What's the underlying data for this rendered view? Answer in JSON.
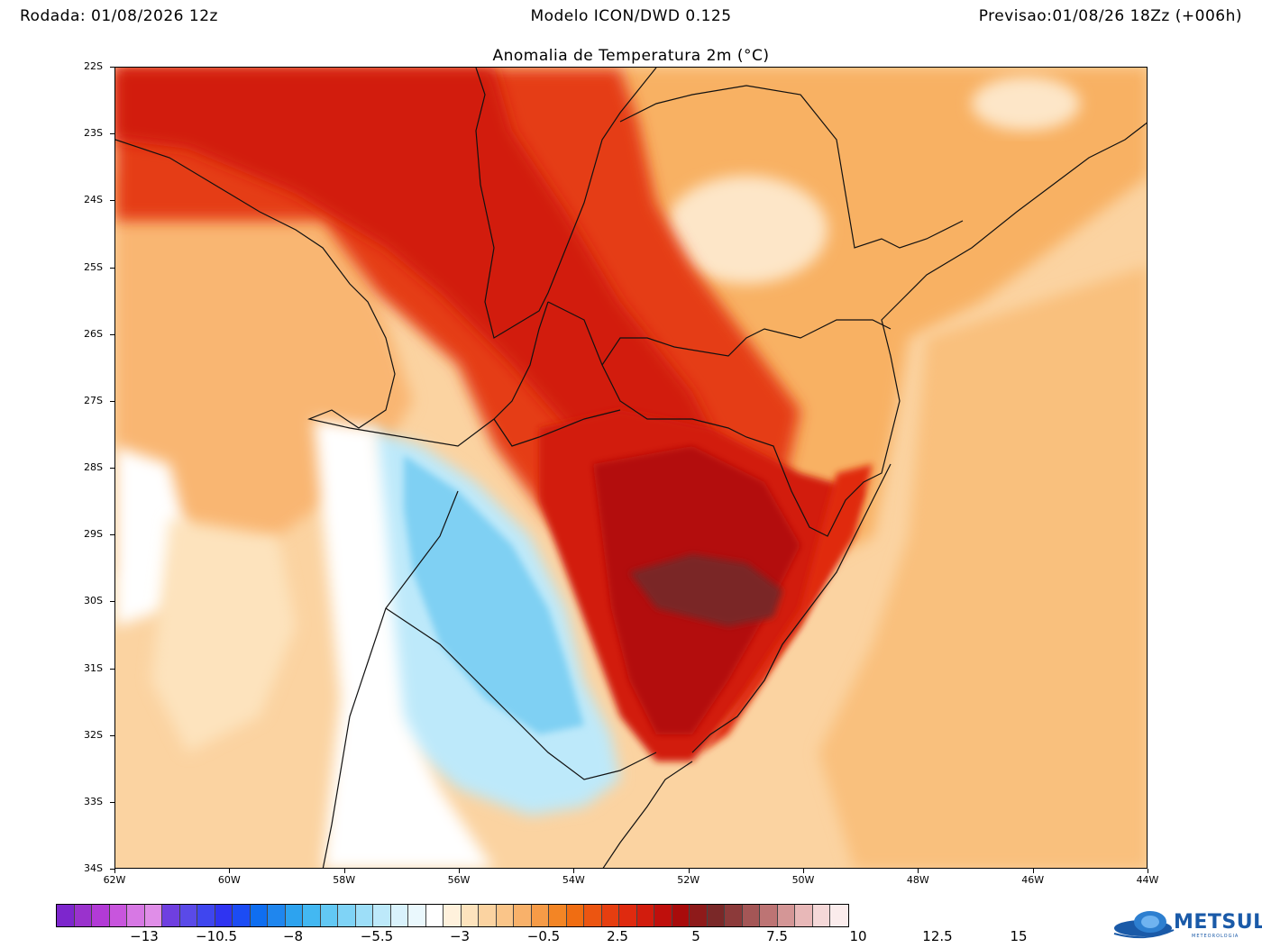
{
  "header": {
    "run": "Rodada: 01/08/2026 12z",
    "model": "Modelo ICON/DWD 0.125",
    "forecast": "Previsao:01/08/26 18Zz (+006h)"
  },
  "map": {
    "title": "Anomalia de Temperatura 2m (°C)",
    "lat_ticks": [
      "22S",
      "23S",
      "24S",
      "25S",
      "26S",
      "27S",
      "28S",
      "29S",
      "30S",
      "31S",
      "32S",
      "33S",
      "34S"
    ],
    "lon_ticks": [
      "62W",
      "60W",
      "58W",
      "56W",
      "54W",
      "52W",
      "50W",
      "48W",
      "46W",
      "44W"
    ],
    "background_color": "#fbd3a1",
    "regions": [
      {
        "name": "warm-north",
        "color": "#e02a10"
      },
      {
        "name": "hot-core",
        "color": "#b30c0c"
      },
      {
        "name": "extreme-core",
        "color": "#7a2828"
      },
      {
        "name": "cold-plume",
        "color": "#7fd0f3"
      },
      {
        "name": "neutral-west",
        "color": "#ffffff"
      }
    ]
  },
  "colorbar": {
    "colors": [
      "#7d26cd",
      "#9a32cd",
      "#b23ad6",
      "#c855dd",
      "#d778e4",
      "#e08ee8",
      "#6f3fe0",
      "#5a4ae8",
      "#3f46ef",
      "#2f34f2",
      "#1c4cf4",
      "#0f6ef0",
      "#1f86ee",
      "#2da3ef",
      "#43b8f2",
      "#62c8f4",
      "#7fd3f6",
      "#9ddef8",
      "#bde9fa",
      "#d9f2fc",
      "#eaf8fd",
      "#ffffff",
      "#fff1dc",
      "#fde3bd",
      "#fbd3a1",
      "#fac589",
      "#f8b16a",
      "#f69b47",
      "#f38525",
      "#f06d12",
      "#ec5511",
      "#e63e10",
      "#df2a0f",
      "#d21c0d",
      "#bf0f0c",
      "#a80b0b",
      "#8e1a1a",
      "#7a2828",
      "#8c3a3a",
      "#a45656",
      "#bd7474",
      "#d49696",
      "#e8b8b8",
      "#f5d8d8",
      "#fbecec"
    ],
    "labels": [
      "-13",
      "-10.5",
      "-8",
      "-5.5",
      "-3",
      "-0.5",
      "2.5",
      "5",
      "7.5",
      "10",
      "12.5",
      "15"
    ]
  },
  "logo": {
    "text": "METSUL",
    "subtext": "METEOROLOGIA"
  }
}
